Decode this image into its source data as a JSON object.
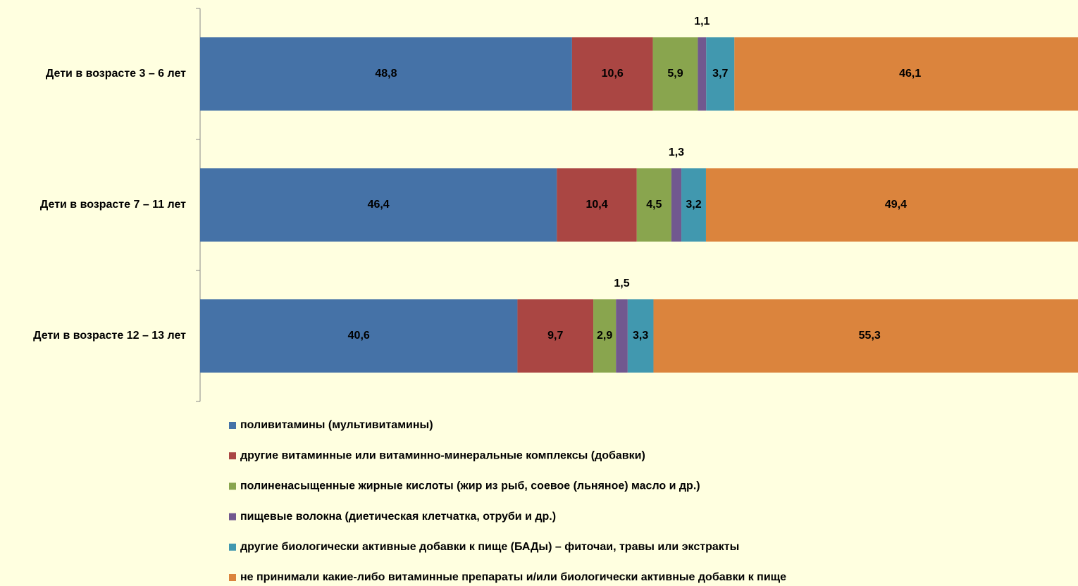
{
  "chart_data": {
    "type": "bar",
    "orientation": "horizontal",
    "stacking": "percent",
    "categories": [
      "Дети в возрасте 3 – 6 лет",
      "Дети в возрасте 7 – 11 лет",
      "Дети в возрасте 12 – 13 лет"
    ],
    "series": [
      {
        "name": "поливитамины (мультивитамины)",
        "color": "#4572a7",
        "values": [
          48.8,
          46.4,
          40.6
        ],
        "value_labels": [
          "48,8",
          "46,4",
          "40,6"
        ]
      },
      {
        "name": "другие витаминные или витаминно-минеральные комплексы (добавки)",
        "color": "#aa4643",
        "values": [
          10.6,
          10.4,
          9.7
        ],
        "value_labels": [
          "10,6",
          "10,4",
          "9,7"
        ]
      },
      {
        "name": "полиненасыщенные жирные кислоты (жир из рыб, соевое (льняное) масло и др.)",
        "color": "#89a54e",
        "values": [
          5.9,
          4.5,
          2.9
        ],
        "value_labels": [
          "5,9",
          "4,5",
          "2,9"
        ]
      },
      {
        "name": "пищевые волокна (диетическая клетчатка, отруби и др.)",
        "color": "#71588f",
        "values": [
          1.1,
          1.3,
          1.5
        ],
        "value_labels": [
          "1,1",
          "1,3",
          "1,5"
        ]
      },
      {
        "name": "другие биологически активные добавки к пище (БАДы) – фиточаи, травы или экстракты",
        "color": "#4198af",
        "values": [
          3.7,
          3.2,
          3.3
        ],
        "value_labels": [
          "3,7",
          "3,2",
          "3,3"
        ]
      },
      {
        "name": "не принимали какие-либо витаминные препараты и/или биологически активные добавки к пище",
        "color": "#db843d",
        "values": [
          46.1,
          49.4,
          55.3
        ],
        "value_labels": [
          "46,1",
          "49,4",
          "55,3"
        ]
      }
    ],
    "legend": "bottom"
  }
}
